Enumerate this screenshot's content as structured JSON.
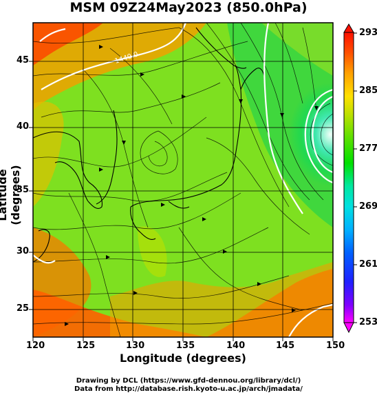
{
  "title": "MSM 09Z24May2023 (850.0hPa)",
  "x_axis": {
    "label": "Longitude (degrees)",
    "ticks": [
      "120",
      "125",
      "130",
      "135",
      "140",
      "145",
      "150"
    ]
  },
  "y_axis": {
    "label": "Latitude (degrees)",
    "ticks": [
      "25",
      "30",
      "35",
      "40",
      "45"
    ]
  },
  "colorbar": {
    "ticks": [
      "293",
      "285",
      "277",
      "269",
      "261",
      "253"
    ],
    "colors": [
      "#ff00ff",
      "#8000ff",
      "#2020ff",
      "#0060ff",
      "#00b0ff",
      "#00e0e0",
      "#00e8a0",
      "#00e000",
      "#40e000",
      "#80e000",
      "#c0e000",
      "#ffe000",
      "#ffb000",
      "#ff8000",
      "#ff4000",
      "#ff0000"
    ]
  },
  "map": {
    "extent": {
      "lon": [
        120,
        150
      ],
      "lat": [
        22.4,
        47.6
      ]
    },
    "field": "temperature (K) with wind streamlines",
    "isoline_label": "1440.0"
  },
  "credits": {
    "line1": "Drawing by DCL (https://www.gfd-dennou.org/library/dcl/)",
    "line2": "Data from http://database.rish.kyoto-u.ac.jp/arch/jmadata/"
  }
}
